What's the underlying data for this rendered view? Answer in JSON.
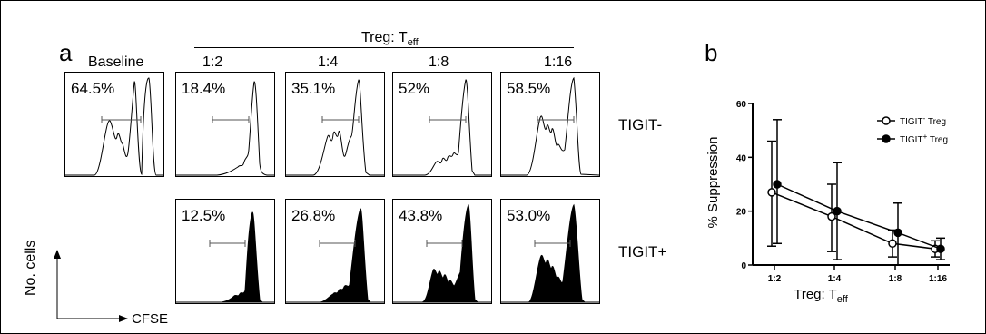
{
  "panel_a": {
    "letter": "a",
    "treg_header": {
      "main": "Treg: T",
      "sub": "eff"
    },
    "column_labels": [
      "Baseline",
      "1:2",
      "1:4",
      "1:8",
      "1:16"
    ],
    "row_labels": [
      "TIGIT-",
      "TIGIT+"
    ],
    "tigit_neg_percentages": [
      "64.5%",
      "18.4%",
      "35.1%",
      "52%",
      "58.5%"
    ],
    "tigit_pos_percentages": [
      "12.5%",
      "26.8%",
      "43.8%",
      "53.0%"
    ],
    "y_axis_label": "No. cells",
    "x_axis_label": "CFSE"
  },
  "chart_data": {
    "type": "line",
    "panel_letter": "b",
    "categories": [
      "1:2",
      "1:4",
      "1:8",
      "1:16"
    ],
    "ylabel": "% Suppression",
    "xlabel": {
      "main": "Treg: T",
      "sub": "eff"
    },
    "ylim": [
      0,
      60
    ],
    "yticks": [
      0,
      20,
      40,
      60
    ],
    "legend_position": "top-right",
    "series": [
      {
        "name": "TIGIT",
        "sup": "-",
        "suffix": " Treg",
        "marker": "open-circle",
        "values": [
          27,
          18,
          8,
          6
        ],
        "err_low": [
          7,
          5,
          3,
          3
        ],
        "err_high": [
          46,
          30,
          13,
          9
        ]
      },
      {
        "name": "TIGIT",
        "sup": "+",
        "suffix": " Treg",
        "marker": "filled-circle",
        "values": [
          30,
          20,
          12,
          6
        ],
        "err_low": [
          8,
          2,
          0,
          2
        ],
        "err_high": [
          54,
          38,
          23,
          10
        ]
      }
    ]
  }
}
